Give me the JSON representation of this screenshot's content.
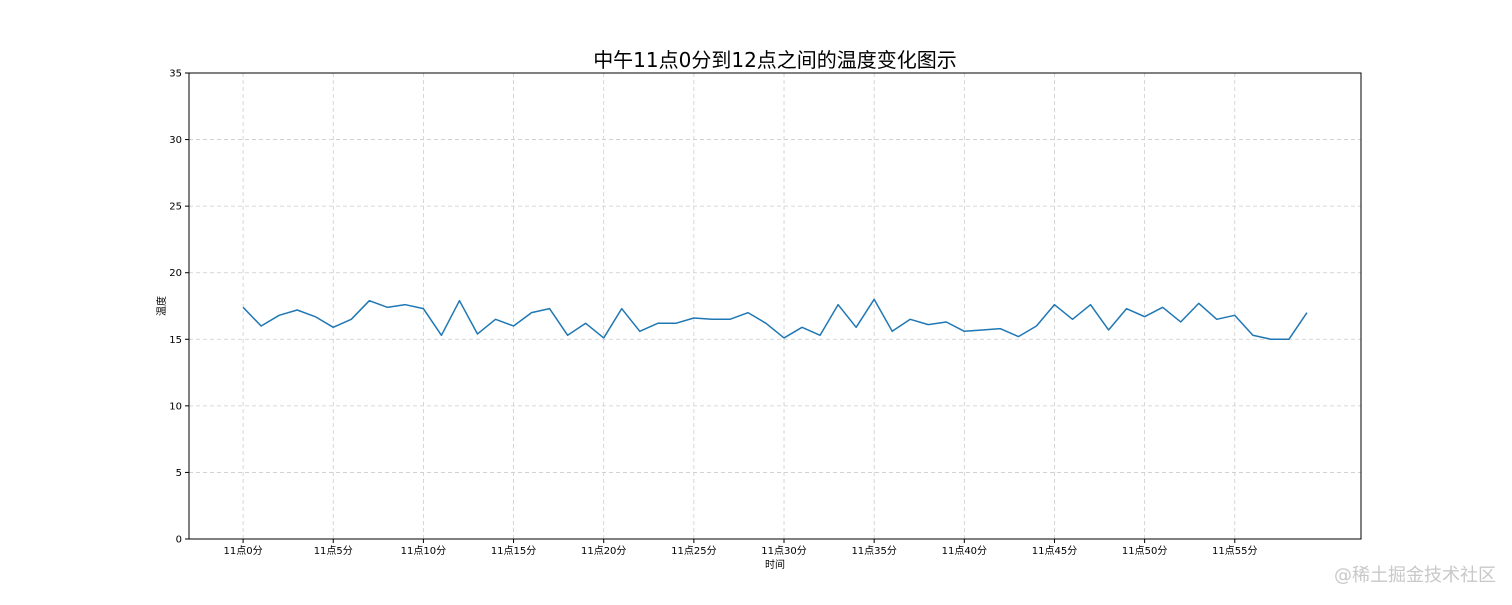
{
  "chart_data": {
    "type": "line",
    "title": "中午11点0分到12点之间的温度变化图示",
    "xlabel": "时间",
    "ylabel": "温度",
    "ylim": [
      0,
      35
    ],
    "yticks": [
      0,
      5,
      10,
      15,
      20,
      25,
      30,
      35
    ],
    "x": [
      0,
      1,
      2,
      3,
      4,
      5,
      6,
      7,
      8,
      9,
      10,
      11,
      12,
      13,
      14,
      15,
      16,
      17,
      18,
      19,
      20,
      21,
      22,
      23,
      24,
      25,
      26,
      27,
      28,
      29,
      30,
      31,
      32,
      33,
      34,
      35,
      36,
      37,
      38,
      39,
      40,
      41,
      42,
      43,
      44,
      45,
      46,
      47,
      48,
      49,
      50,
      51,
      52,
      53,
      54,
      55,
      56,
      57,
      58,
      59
    ],
    "xlim": [
      -3,
      62
    ],
    "xticks": [
      {
        "x": 0,
        "label": "11点0分"
      },
      {
        "x": 5,
        "label": "11点5分"
      },
      {
        "x": 10,
        "label": "11点10分"
      },
      {
        "x": 15,
        "label": "11点15分"
      },
      {
        "x": 20,
        "label": "11点20分"
      },
      {
        "x": 25,
        "label": "11点25分"
      },
      {
        "x": 30,
        "label": "11点30分"
      },
      {
        "x": 35,
        "label": "11点35分"
      },
      {
        "x": 40,
        "label": "11点40分"
      },
      {
        "x": 45,
        "label": "11点45分"
      },
      {
        "x": 50,
        "label": "11点50分"
      },
      {
        "x": 55,
        "label": "11点55分"
      }
    ],
    "series": [
      {
        "color": "#1f77b4",
        "values": [
          17.4,
          16.0,
          16.8,
          17.2,
          16.7,
          15.9,
          16.5,
          17.9,
          17.4,
          17.6,
          17.3,
          15.3,
          17.9,
          15.4,
          16.5,
          16.0,
          17.0,
          17.3,
          15.3,
          16.2,
          15.1,
          17.3,
          15.6,
          16.2,
          16.2,
          16.6,
          16.5,
          16.5,
          17.0,
          16.2,
          15.1,
          15.9,
          15.3,
          17.6,
          15.9,
          18.0,
          15.6,
          16.5,
          16.1,
          16.3,
          15.6,
          15.7,
          15.8,
          15.2,
          16.0,
          17.6,
          16.5,
          17.6,
          15.7,
          17.3,
          16.7,
          17.4,
          16.3,
          17.7,
          16.5,
          16.8,
          15.3,
          15.0,
          15.0,
          17.0
        ]
      }
    ],
    "grid": true,
    "grid_style": "dashed"
  },
  "watermark": "@稀土掘金技术社区"
}
